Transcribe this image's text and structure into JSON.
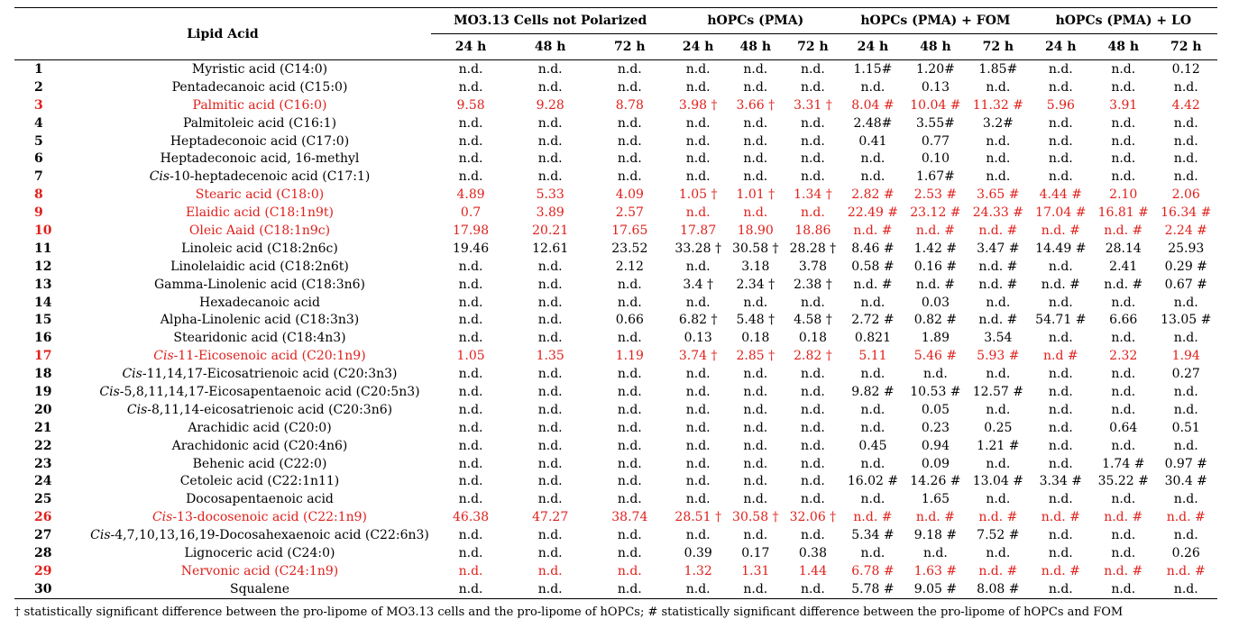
{
  "table": {
    "header": {
      "lipid_acid": "Lipid Acid",
      "groups": [
        "MO3.13 Cells not Polarized",
        "hOPCs (PMA)",
        "hOPCs (PMA) + FOM",
        "hOPCs (PMA) + LO"
      ],
      "times": [
        "24 h",
        "48 h",
        "72 h",
        "24 h",
        "48 h",
        "72 h",
        "24 h",
        "48 h",
        "72 h",
        "24 h",
        "48 h",
        "72 h"
      ]
    },
    "rows": [
      {
        "n": "1",
        "pre": "",
        "name": "Myristic acid (C14:0)",
        "red": false,
        "v": [
          "n.d.",
          "n.d.",
          "n.d.",
          "n.d.",
          "n.d.",
          "n.d.",
          "1.15#",
          "1.20#",
          "1.85#",
          "n.d.",
          "n.d.",
          "0.12"
        ]
      },
      {
        "n": "2",
        "pre": "",
        "name": "Pentadecanoic acid (C15:0)",
        "red": false,
        "v": [
          "n.d.",
          "n.d.",
          "n.d.",
          "n.d.",
          "n.d.",
          "n.d.",
          "n.d.",
          "0.13",
          "n.d.",
          "n.d.",
          "n.d.",
          "n.d."
        ]
      },
      {
        "n": "3",
        "pre": "",
        "name": "Palmitic acid (C16:0)",
        "red": true,
        "v": [
          "9.58",
          "9.28",
          "8.78",
          "3.98 †",
          "3.66 †",
          "3.31 †",
          "8.04 #",
          "10.04 #",
          "11.32 #",
          "5.96",
          "3.91",
          "4.42"
        ]
      },
      {
        "n": "4",
        "pre": "",
        "name": "Palmitoleic acid (C16:1)",
        "red": false,
        "v": [
          "n.d.",
          "n.d.",
          "n.d.",
          "n.d.",
          "n.d.",
          "n.d.",
          "2.48#",
          "3.55#",
          "3.2#",
          "n.d.",
          "n.d.",
          "n.d."
        ]
      },
      {
        "n": "5",
        "pre": "",
        "name": "Heptadeconoic acid (C17:0)",
        "red": false,
        "v": [
          "n.d.",
          "n.d.",
          "n.d.",
          "n.d.",
          "n.d.",
          "n.d.",
          "0.41",
          "0.77",
          "n.d.",
          "n.d.",
          "n.d.",
          "n.d."
        ]
      },
      {
        "n": "6",
        "pre": "",
        "name": "Heptadeconoic acid, 16-methyl",
        "red": false,
        "v": [
          "n.d.",
          "n.d.",
          "n.d.",
          "n.d.",
          "n.d.",
          "n.d.",
          "n.d.",
          "0.10",
          "n.d.",
          "n.d.",
          "n.d.",
          "n.d."
        ]
      },
      {
        "n": "7",
        "pre": "Cis",
        "name": "-10-heptadecenoic acid (C17:1)",
        "red": false,
        "v": [
          "n.d.",
          "n.d.",
          "n.d.",
          "n.d.",
          "n.d.",
          "n.d.",
          "n.d.",
          "1.67#",
          "n.d.",
          "n.d.",
          "n.d.",
          "n.d."
        ]
      },
      {
        "n": "8",
        "pre": "",
        "name": "Stearic acid (C18:0)",
        "red": true,
        "v": [
          "4.89",
          "5.33",
          "4.09",
          "1.05 †",
          "1.01 †",
          "1.34 †",
          "2.82 #",
          "2.53 #",
          "3.65 #",
          "4.44 #",
          "2.10",
          "2.06"
        ]
      },
      {
        "n": "9",
        "pre": "",
        "name": "Elaidic acid (C18:1n9t)",
        "red": true,
        "v": [
          "0.7",
          "3.89",
          "2.57",
          "n.d.",
          "n.d.",
          "n.d.",
          "22.49 #",
          "23.12 #",
          "24.33 #",
          "17.04 #",
          "16.81 #",
          "16.34 #"
        ]
      },
      {
        "n": "10",
        "pre": "",
        "name": "Oleic Aaid (C18:1n9c)",
        "red": true,
        "v": [
          "17.98",
          "20.21",
          "17.65",
          "17.87",
          "18.90",
          "18.86",
          "n.d. #",
          "n.d. #",
          "n.d. #",
          "n.d. #",
          "n.d. #",
          "2.24 #"
        ]
      },
      {
        "n": "11",
        "pre": "",
        "name": "Linoleic acid (C18:2n6c)",
        "red": false,
        "v": [
          "19.46",
          "12.61",
          "23.52",
          "33.28 †",
          "30.58 †",
          "28.28 †",
          "8.46 #",
          "1.42 #",
          "3.47 #",
          "14.49 #",
          "28.14",
          "25.93"
        ]
      },
      {
        "n": "12",
        "pre": "",
        "name": "Linolelaidic acid (C18:2n6t)",
        "red": false,
        "v": [
          "n.d.",
          "n.d.",
          "2.12",
          "n.d.",
          "3.18",
          "3.78",
          "0.58 #",
          "0.16 #",
          "n.d. #",
          "n.d.",
          "2.41",
          "0.29 #"
        ]
      },
      {
        "n": "13",
        "pre": "",
        "name": "Gamma-Linolenic acid (C18:3n6)",
        "red": false,
        "v": [
          "n.d.",
          "n.d.",
          "n.d.",
          "3.4 †",
          "2.34 †",
          "2.38 †",
          "n.d. #",
          "n.d. #",
          "n.d. #",
          "n.d. #",
          "n.d. #",
          "0.67 #"
        ]
      },
      {
        "n": "14",
        "pre": "",
        "name": "Hexadecanoic acid",
        "red": false,
        "v": [
          "n.d.",
          "n.d.",
          "n.d.",
          "n.d.",
          "n.d.",
          "n.d.",
          "n.d.",
          "0.03",
          "n.d.",
          "n.d.",
          "n.d.",
          "n.d."
        ]
      },
      {
        "n": "15",
        "pre": "",
        "name": "Alpha-Linolenic acid (C18:3n3)",
        "red": false,
        "v": [
          "n.d.",
          "n.d.",
          "0.66",
          "6.82 †",
          "5.48 †",
          "4.58 †",
          "2.72 #",
          "0.82 #",
          "n.d. #",
          "54.71 #",
          "6.66",
          "13.05 #"
        ]
      },
      {
        "n": "16",
        "pre": "",
        "name": "Stearidonic acid (C18:4n3)",
        "red": false,
        "v": [
          "n.d.",
          "n.d.",
          "n.d.",
          "0.13",
          "0.18",
          "0.18",
          "0.821",
          "1.89",
          "3.54",
          "n.d.",
          "n.d.",
          "n.d."
        ]
      },
      {
        "n": "17",
        "pre": "Cis",
        "name": "-11-Eicosenoic acid (C20:1n9)",
        "red": true,
        "v": [
          "1.05",
          "1.35",
          "1.19",
          "3.74 †",
          "2.85 †",
          "2.82 †",
          "5.11",
          "5.46 #",
          "5.93 #",
          "n.d #",
          "2.32",
          "1.94"
        ]
      },
      {
        "n": "18",
        "pre": "Cis",
        "name": "-11,14,17-Eicosatrienoic acid (C20:3n3)",
        "red": false,
        "v": [
          "n.d.",
          "n.d.",
          "n.d.",
          "n.d.",
          "n.d.",
          "n.d.",
          "n.d.",
          "n.d.",
          "n.d.",
          "n.d.",
          "n.d.",
          "0.27"
        ]
      },
      {
        "n": "19",
        "pre": "Cis",
        "name": "-5,8,11,14,17-Eicosapentaenoic acid (C20:5n3)",
        "red": false,
        "v": [
          "n.d.",
          "n.d.",
          "n.d.",
          "n.d.",
          "n.d.",
          "n.d.",
          "9.82 #",
          "10.53 #",
          "12.57 #",
          "n.d.",
          "n.d.",
          "n.d."
        ]
      },
      {
        "n": "20",
        "pre": "Cis",
        "name": "-8,11,14-eicosatrienoic acid (C20:3n6)",
        "red": false,
        "v": [
          "n.d.",
          "n.d.",
          "n.d.",
          "n.d.",
          "n.d.",
          "n.d.",
          "n.d.",
          "0.05",
          "n.d.",
          "n.d.",
          "n.d.",
          "n.d."
        ]
      },
      {
        "n": "21",
        "pre": "",
        "name": "Arachidic acid (C20:0)",
        "red": false,
        "v": [
          "n.d.",
          "n.d.",
          "n.d.",
          "n.d.",
          "n.d.",
          "n.d.",
          "n.d.",
          "0.23",
          "0.25",
          "n.d.",
          "0.64",
          "0.51"
        ]
      },
      {
        "n": "22",
        "pre": "",
        "name": "Arachidonic acid (C20:4n6)",
        "red": false,
        "v": [
          "n.d.",
          "n.d.",
          "n.d.",
          "n.d.",
          "n.d.",
          "n.d.",
          "0.45",
          "0.94",
          "1.21 #",
          "n.d.",
          "n.d.",
          "n.d."
        ]
      },
      {
        "n": "23",
        "pre": "",
        "name": "Behenic acid (C22:0)",
        "red": false,
        "v": [
          "n.d.",
          "n.d.",
          "n.d.",
          "n.d.",
          "n.d.",
          "n.d.",
          "n.d.",
          "0.09",
          "n.d.",
          "n.d.",
          "1.74 #",
          "0.97 #"
        ]
      },
      {
        "n": "24",
        "pre": "",
        "name": "Cetoleic acid (C22:1n11)",
        "red": false,
        "v": [
          "n.d.",
          "n.d.",
          "n.d.",
          "n.d.",
          "n.d.",
          "n.d.",
          "16.02 #",
          "14.26 #",
          "13.04 #",
          "3.34 #",
          "35.22 #",
          "30.4 #"
        ]
      },
      {
        "n": "25",
        "pre": "",
        "name": "Docosapentaenoic acid",
        "red": false,
        "v": [
          "n.d.",
          "n.d.",
          "n.d.",
          "n.d.",
          "n.d.",
          "n.d.",
          "n.d.",
          "1.65",
          "n.d.",
          "n.d.",
          "n.d.",
          "n.d."
        ]
      },
      {
        "n": "26",
        "pre": "Cis",
        "name": "-13-docosenoic acid (C22:1n9)",
        "red": true,
        "v": [
          "46.38",
          "47.27",
          "38.74",
          "28.51 †",
          "30.58 †",
          "32.06 †",
          "n.d. #",
          "n.d. #",
          "n.d. #",
          "n.d. #",
          "n.d. #",
          "n.d. #"
        ]
      },
      {
        "n": "27",
        "pre": "Cis",
        "name": "-4,7,10,13,16,19-Docosahexaenoic acid (C22:6n3)",
        "red": false,
        "v": [
          "n.d.",
          "n.d.",
          "n.d.",
          "n.d.",
          "n.d.",
          "n.d.",
          "5.34 #",
          "9.18 #",
          "7.52 #",
          "n.d.",
          "n.d.",
          "n.d."
        ]
      },
      {
        "n": "28",
        "pre": "",
        "name": "Lignoceric acid (C24:0)",
        "red": false,
        "v": [
          "n.d.",
          "n.d.",
          "n.d.",
          "0.39",
          "0.17",
          "0.38",
          "n.d.",
          "n.d.",
          "n.d.",
          "n.d.",
          "n.d.",
          "0.26"
        ]
      },
      {
        "n": "29",
        "pre": "",
        "name": "Nervonic acid (C24:1n9)",
        "red": true,
        "v": [
          "n.d.",
          "n.d.",
          "n.d.",
          "1.32",
          "1.31",
          "1.44",
          "6.78 #",
          "1.63 #",
          "n.d. #",
          "n.d. #",
          "n.d. #",
          "n.d. #"
        ]
      },
      {
        "n": "30",
        "pre": "",
        "name": "Squalene",
        "red": false,
        "v": [
          "n.d.",
          "n.d.",
          "n.d.",
          "n.d.",
          "n.d.",
          "n.d.",
          "5.78 #",
          "9.05 #",
          "8.08 #",
          "n.d.",
          "n.d.",
          "n.d."
        ]
      }
    ]
  },
  "colors": {
    "highlight": "#e0201b",
    "text": "#000000"
  },
  "footnote": "† statistically significant difference between the pro-lipome of MO3.13 cells and the pro-lipome of hOPCs; # statistically significant difference between the pro-lipome of hOPCs and FOM"
}
